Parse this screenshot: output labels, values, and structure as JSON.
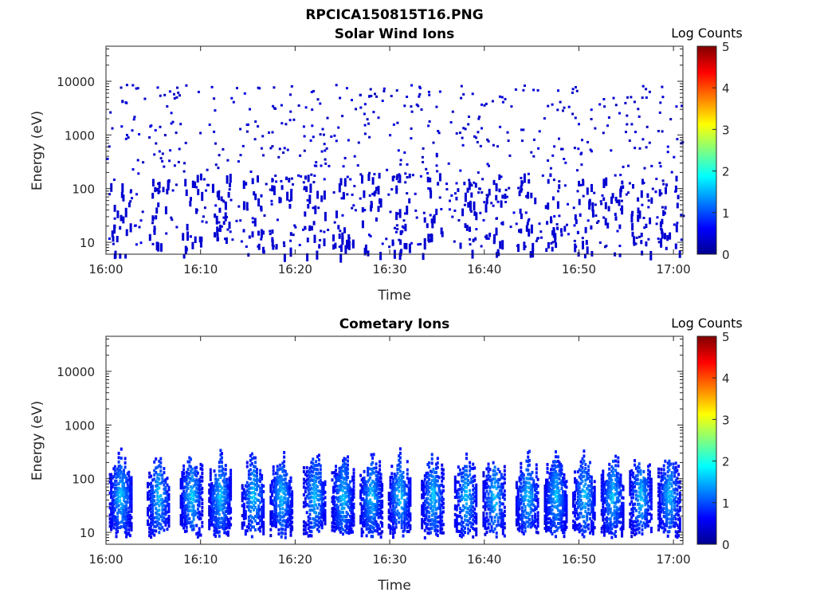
{
  "figure": {
    "title": "RPCICA150815T16.PNG"
  },
  "colors": {
    "axis": "#262626",
    "colormap": "jet"
  },
  "chart_data": [
    {
      "type": "heatmap",
      "title": "Solar Wind Ions",
      "xlabel": "Time",
      "ylabel": "Energy (eV)",
      "x_ticks": [
        "16:00",
        "16:10",
        "16:20",
        "16:30",
        "16:40",
        "16:50",
        "17:00"
      ],
      "x_range_minutes": [
        0,
        61
      ],
      "y_scale": "log",
      "y_ticks": [
        "10",
        "100",
        "1000",
        "10000"
      ],
      "y_range": [
        6,
        45000
      ],
      "colorbar": {
        "label": "Log Counts",
        "ticks": [
          "0",
          "1",
          "2",
          "3",
          "4",
          "5"
        ],
        "range": [
          0,
          5
        ]
      },
      "description_values": {
        "typical_log_counts": 0.1,
        "max_log_counts": 0.3
      }
    },
    {
      "type": "heatmap",
      "title": "Cometary Ions",
      "xlabel": "Time",
      "ylabel": "Energy (eV)",
      "x_ticks": [
        "16:00",
        "16:10",
        "16:20",
        "16:30",
        "16:40",
        "16:50",
        "17:00"
      ],
      "x_range_minutes": [
        0,
        61
      ],
      "y_scale": "log",
      "y_ticks": [
        "10",
        "100",
        "1000",
        "10000"
      ],
      "y_range": [
        6,
        45000
      ],
      "colorbar": {
        "label": "Log Counts",
        "ticks": [
          "0",
          "1",
          "2",
          "3",
          "4",
          "5"
        ],
        "range": [
          0,
          5
        ]
      },
      "bursts_minutes": [
        1.5,
        5.5,
        9,
        12,
        15.5,
        18.5,
        22,
        25,
        28,
        31,
        34.5,
        38,
        41,
        44.5,
        47.5,
        50.5,
        53.5,
        56.5,
        59.5
      ],
      "energy_band_eV": [
        15,
        300
      ]
    }
  ]
}
